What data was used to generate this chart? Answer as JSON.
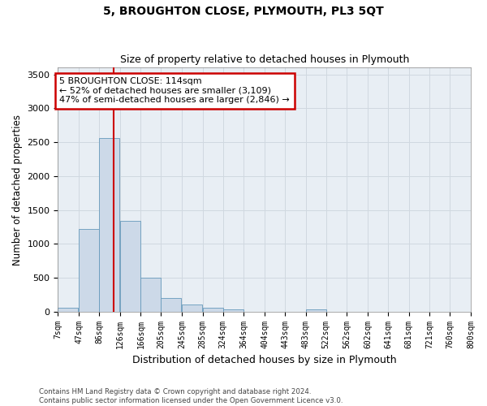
{
  "title": "5, BROUGHTON CLOSE, PLYMOUTH, PL3 5QT",
  "subtitle": "Size of property relative to detached houses in Plymouth",
  "xlabel": "Distribution of detached houses by size in Plymouth",
  "ylabel": "Number of detached properties",
  "bar_color": "#ccd9e8",
  "bar_edge_color": "#6699bb",
  "vline_x": 114,
  "vline_color": "#cc0000",
  "bins_left": [
    7,
    47,
    86,
    126,
    166,
    205,
    245,
    285,
    324,
    364,
    404,
    443,
    483,
    522,
    562,
    602,
    641,
    681,
    721,
    760
  ],
  "bin_width": 39,
  "bin_labels": [
    "7sqm",
    "47sqm",
    "86sqm",
    "126sqm",
    "166sqm",
    "205sqm",
    "245sqm",
    "285sqm",
    "324sqm",
    "364sqm",
    "404sqm",
    "443sqm",
    "483sqm",
    "522sqm",
    "562sqm",
    "602sqm",
    "641sqm",
    "681sqm",
    "721sqm",
    "760sqm",
    "800sqm"
  ],
  "bar_heights": [
    55,
    1225,
    2560,
    1340,
    500,
    195,
    105,
    55,
    30,
    0,
    0,
    0,
    30,
    0,
    0,
    0,
    0,
    0,
    0,
    0
  ],
  "ylim": [
    0,
    3600
  ],
  "yticks": [
    0,
    500,
    1000,
    1500,
    2000,
    2500,
    3000,
    3500
  ],
  "xlim_left": 7,
  "xlim_right": 800,
  "annotation_text": "5 BROUGHTON CLOSE: 114sqm\n← 52% of detached houses are smaller (3,109)\n47% of semi-detached houses are larger (2,846) →",
  "annotation_box_color": "#ffffff",
  "annotation_box_edge": "#cc0000",
  "footnote": "Contains HM Land Registry data © Crown copyright and database right 2024.\nContains public sector information licensed under the Open Government Licence v3.0.",
  "grid_color": "#d0d8e0",
  "background_color": "#e8eef4"
}
